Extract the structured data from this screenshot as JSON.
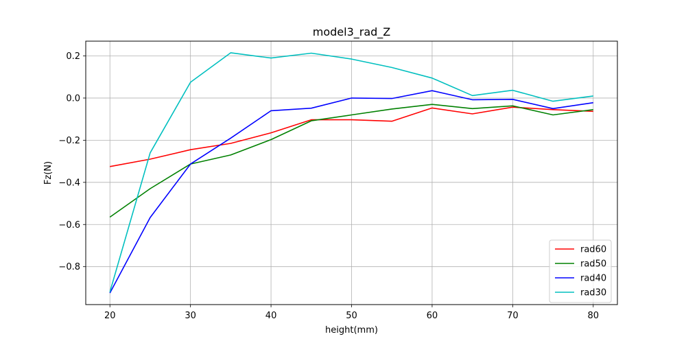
{
  "chart_data": {
    "type": "line",
    "title": "model3_rad_Z",
    "xlabel": "height(mm)",
    "ylabel": "Fz(N)",
    "x": [
      20,
      25,
      30,
      35,
      40,
      45,
      50,
      55,
      60,
      65,
      70,
      75,
      80
    ],
    "xlim": [
      17,
      83
    ],
    "ylim": [
      -0.98,
      0.27
    ],
    "xticks": [
      20,
      30,
      40,
      50,
      60,
      70,
      80
    ],
    "yticks": [
      -0.8,
      -0.6,
      -0.4,
      -0.2,
      0.0,
      0.2
    ],
    "ytick_labels": [
      "−0.8",
      "−0.6",
      "−0.4",
      "−0.2",
      "0.0",
      "0.2"
    ],
    "grid": true,
    "legend_position": "lower-right",
    "series": [
      {
        "name": "rad60",
        "color": "#ff0000",
        "values": [
          -0.325,
          -0.29,
          -0.245,
          -0.215,
          -0.165,
          -0.103,
          -0.103,
          -0.11,
          -0.047,
          -0.075,
          -0.043,
          -0.055,
          -0.063
        ]
      },
      {
        "name": "rad50",
        "color": "#008000",
        "values": [
          -0.565,
          -0.43,
          -0.313,
          -0.27,
          -0.197,
          -0.108,
          -0.08,
          -0.052,
          -0.03,
          -0.05,
          -0.037,
          -0.08,
          -0.055
        ]
      },
      {
        "name": "rad40",
        "color": "#0000ff",
        "values": [
          -0.925,
          -0.567,
          -0.313,
          -0.19,
          -0.06,
          -0.048,
          0.0,
          -0.002,
          0.035,
          -0.008,
          -0.006,
          -0.05,
          -0.022
        ]
      },
      {
        "name": "rad30",
        "color": "#00bfbf",
        "values": [
          -0.92,
          -0.26,
          0.075,
          0.215,
          0.19,
          0.213,
          0.185,
          0.145,
          0.095,
          0.012,
          0.037,
          -0.015,
          0.01
        ]
      }
    ]
  }
}
